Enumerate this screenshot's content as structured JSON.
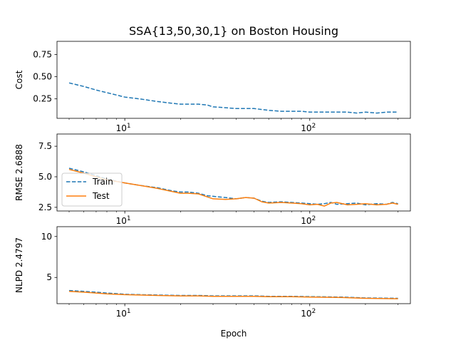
{
  "figure": {
    "title": "SSA{13,50,30,1} on Boston Housing",
    "xlabel": "Epoch"
  },
  "colors": {
    "train": "#1f77b4",
    "test": "#ff7f0e"
  },
  "chart_data": [
    {
      "type": "line",
      "xscale": "log",
      "xlim": [
        4.3,
        350
      ],
      "ylim": [
        0.03,
        0.9
      ],
      "ylabel": "Cost",
      "yticks": [
        0.25,
        0.5,
        0.75
      ],
      "yticklabels": [
        "0.25",
        "0.50",
        "0.75"
      ],
      "xticks": [
        10,
        100
      ],
      "legend": false,
      "series": [
        {
          "name": "Train",
          "style": "dashed",
          "x": [
            5,
            6,
            7,
            8,
            10,
            12,
            15,
            18,
            20,
            22,
            25,
            28,
            30,
            35,
            40,
            45,
            50,
            55,
            60,
            70,
            80,
            90,
            100,
            120,
            140,
            160,
            180,
            200,
            230,
            260,
            300
          ],
          "y": [
            0.43,
            0.39,
            0.35,
            0.32,
            0.27,
            0.25,
            0.22,
            0.2,
            0.19,
            0.19,
            0.19,
            0.18,
            0.16,
            0.15,
            0.14,
            0.14,
            0.14,
            0.13,
            0.12,
            0.11,
            0.11,
            0.11,
            0.1,
            0.1,
            0.1,
            0.1,
            0.09,
            0.1,
            0.09,
            0.1,
            0.1
          ]
        }
      ]
    },
    {
      "type": "line",
      "xscale": "log",
      "xlim": [
        4.3,
        350
      ],
      "ylim": [
        2.2,
        8.5
      ],
      "ylabel": "RMSE 2.6888",
      "yticks": [
        2.5,
        5.0,
        7.5
      ],
      "yticklabels": [
        "2.5",
        "5.0",
        "7.5"
      ],
      "xticks": [
        10,
        100
      ],
      "legend": "center-left",
      "series": [
        {
          "name": "Train",
          "style": "dashed",
          "x": [
            5,
            6,
            7,
            8,
            10,
            12,
            15,
            18,
            20,
            22,
            25,
            28,
            30,
            35,
            40,
            45,
            50,
            55,
            60,
            70,
            80,
            90,
            100,
            110,
            120,
            130,
            140,
            160,
            180,
            200,
            230,
            260,
            280,
            300
          ],
          "y": [
            5.7,
            5.4,
            5.1,
            4.8,
            4.5,
            4.3,
            4.1,
            3.85,
            3.75,
            3.75,
            3.65,
            3.45,
            3.4,
            3.3,
            3.2,
            3.3,
            3.25,
            3.0,
            2.9,
            2.95,
            2.9,
            2.85,
            2.8,
            2.75,
            2.8,
            2.9,
            2.75,
            2.8,
            2.85,
            2.7,
            2.8,
            2.75,
            2.9,
            2.8
          ]
        },
        {
          "name": "Test",
          "style": "solid",
          "x": [
            5,
            6,
            7,
            8,
            10,
            12,
            15,
            18,
            20,
            22,
            25,
            28,
            30,
            35,
            40,
            45,
            50,
            55,
            60,
            70,
            80,
            90,
            100,
            110,
            120,
            130,
            140,
            160,
            180,
            200,
            230,
            260,
            280,
            300
          ],
          "y": [
            5.6,
            5.3,
            5.0,
            4.75,
            4.5,
            4.3,
            4.05,
            3.8,
            3.65,
            3.65,
            3.6,
            3.35,
            3.2,
            3.15,
            3.2,
            3.3,
            3.25,
            2.95,
            2.85,
            2.9,
            2.85,
            2.8,
            2.7,
            2.75,
            2.6,
            2.85,
            2.9,
            2.7,
            2.75,
            2.8,
            2.7,
            2.75,
            2.85,
            2.75
          ]
        }
      ]
    },
    {
      "type": "line",
      "xscale": "log",
      "xlim": [
        4.3,
        350
      ],
      "ylim": [
        1.8,
        11.2
      ],
      "ylabel": "NLPD 2.4797",
      "yticks": [
        5,
        10
      ],
      "yticklabels": [
        "5",
        "10"
      ],
      "xticks": [
        10,
        100
      ],
      "legend": false,
      "series": [
        {
          "name": "Train",
          "style": "dashed",
          "x": [
            5,
            6,
            7,
            8,
            10,
            12,
            15,
            20,
            25,
            30,
            40,
            50,
            60,
            80,
            100,
            150,
            200,
            300
          ],
          "y": [
            3.4,
            3.3,
            3.2,
            3.1,
            2.95,
            2.9,
            2.85,
            2.8,
            2.8,
            2.75,
            2.75,
            2.75,
            2.7,
            2.7,
            2.65,
            2.6,
            2.5,
            2.45
          ]
        },
        {
          "name": "Test",
          "style": "solid",
          "x": [
            5,
            6,
            7,
            8,
            10,
            12,
            15,
            20,
            25,
            30,
            40,
            50,
            60,
            80,
            100,
            150,
            200,
            300
          ],
          "y": [
            3.3,
            3.2,
            3.1,
            3.0,
            2.9,
            2.85,
            2.8,
            2.75,
            2.75,
            2.7,
            2.7,
            2.7,
            2.65,
            2.65,
            2.6,
            2.55,
            2.45,
            2.4
          ]
        }
      ]
    }
  ]
}
